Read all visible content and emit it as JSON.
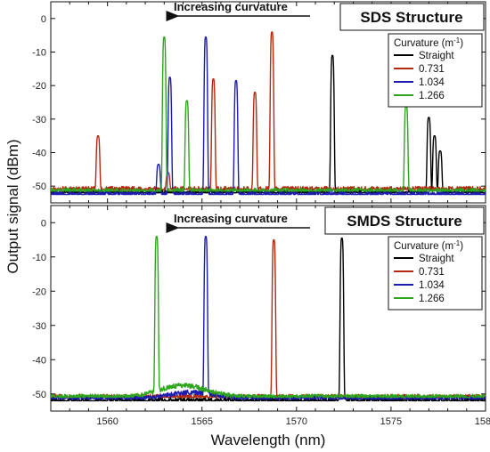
{
  "chart_data": {
    "type": "line",
    "xlabel": "Wavelength (nm)",
    "ylabel": "Output signal (dBm)",
    "xlim": [
      1557,
      1580
    ],
    "xticks": [
      1560,
      1565,
      1570,
      1575,
      1580
    ],
    "series_colors": {
      "Straight": "#000000",
      "0.731": "#b22a10",
      "1.034": "#1c1cb0",
      "1.266": "#2fa51e"
    },
    "panels": [
      {
        "id": "top",
        "structure_label": "SDS Structure",
        "annotation": "Increasing curvature",
        "legend_title": "Curvature (m",
        "legend_title_sup": "-1",
        "legend_title_close": ")",
        "ylim": [
          -55,
          5
        ],
        "yticks": [
          0,
          -10,
          -20,
          -30,
          -40,
          -50
        ],
        "series": [
          {
            "name": "Straight",
            "baseline": -52,
            "hump": null,
            "peaks": [
              [
                1571.9,
                -11
              ],
              [
                1577.0,
                -29.5
              ],
              [
                1577.3,
                -35
              ],
              [
                1577.6,
                -39.5
              ]
            ]
          },
          {
            "name": "0.731",
            "baseline": -51,
            "hump": null,
            "peaks": [
              [
                1559.5,
                -35
              ],
              [
                1563.2,
                -46
              ],
              [
                1565.6,
                -18
              ],
              [
                1567.8,
                -22
              ],
              [
                1568.7,
                -4
              ]
            ]
          },
          {
            "name": "1.034",
            "baseline": -52.5,
            "hump": null,
            "peaks": [
              [
                1562.7,
                -43.5
              ],
              [
                1563.3,
                -17.5
              ],
              [
                1565.2,
                -5.5
              ],
              [
                1566.8,
                -18.5
              ]
            ]
          },
          {
            "name": "1.266",
            "baseline": -51.5,
            "hump": null,
            "peaks": [
              [
                1563.0,
                -5.5
              ],
              [
                1564.2,
                -24.5
              ],
              [
                1575.8,
                -26
              ]
            ]
          }
        ]
      },
      {
        "id": "bottom",
        "structure_label": "SMDS Structure",
        "annotation": "Increasing curvature",
        "legend_title": "Curvature (m",
        "legend_title_sup": "-1",
        "legend_title_close": ")",
        "ylim": [
          -55,
          5
        ],
        "yticks": [
          0,
          -10,
          -20,
          -30,
          -40,
          -50
        ],
        "series": [
          {
            "name": "Straight",
            "baseline": -52,
            "hump": null,
            "peaks": [
              [
                1572.4,
                -4.5
              ]
            ]
          },
          {
            "name": "0.731",
            "baseline": -51,
            "hump": null,
            "peaks": [
              [
                1568.8,
                -5
              ]
            ]
          },
          {
            "name": "1.034",
            "baseline": -51.5,
            "hump": [
              1564.5,
              -49.5,
              1.8
            ],
            "peaks": [
              [
                1565.2,
                -4
              ]
            ]
          },
          {
            "name": "1.266",
            "baseline": -51,
            "hump": [
              1564.0,
              -47.5,
              1.8
            ],
            "peaks": [
              [
                1562.6,
                -4
              ]
            ]
          }
        ]
      }
    ]
  }
}
